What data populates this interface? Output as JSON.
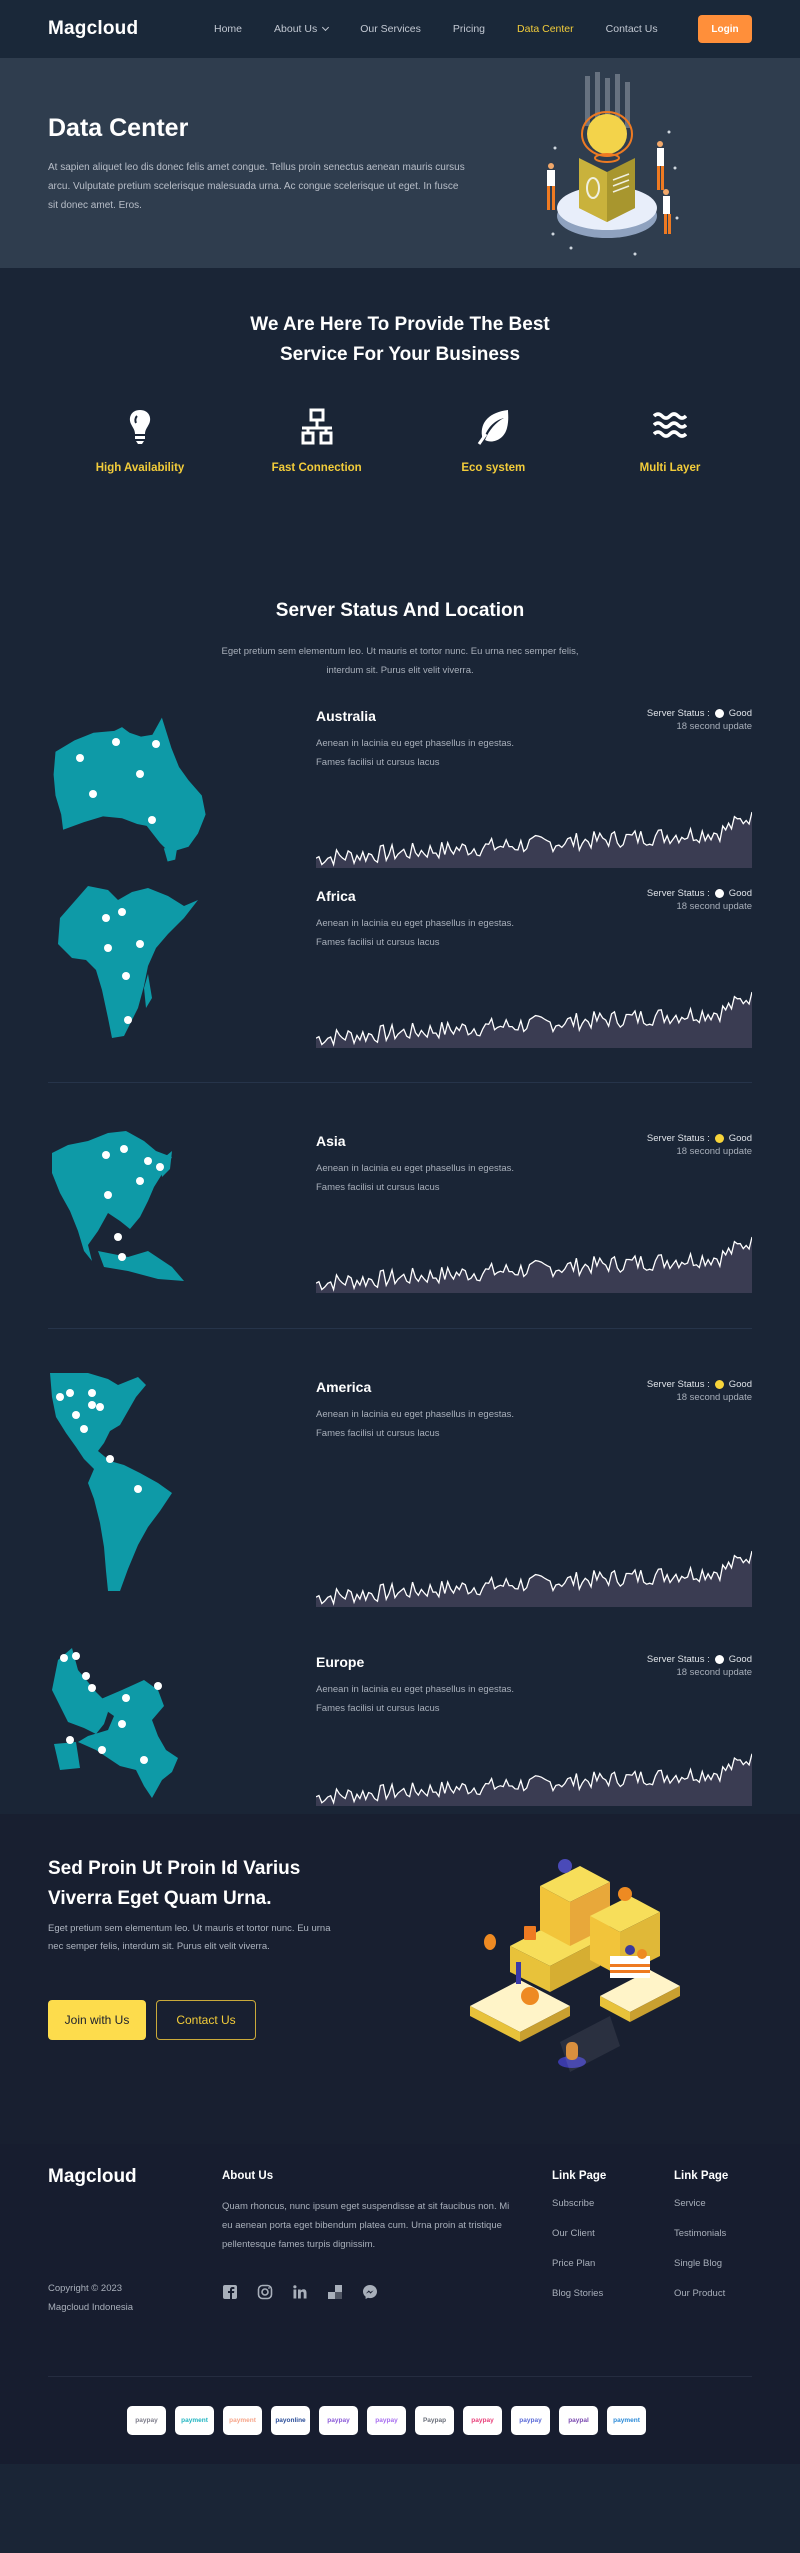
{
  "header": {
    "logo": "Magcloud",
    "nav": [
      {
        "label": "Home",
        "active": false
      },
      {
        "label": "About Us",
        "active": false,
        "dropdown": true
      },
      {
        "label": "Our Services",
        "active": false
      },
      {
        "label": "Pricing",
        "active": false
      },
      {
        "label": "Data Center",
        "active": true
      },
      {
        "label": "Contact Us",
        "active": false
      }
    ],
    "login_label": "Login"
  },
  "hero": {
    "title": "Data Center",
    "text": "At sapien aliquet leo dis donec felis amet congue. Tellus proin senectus aenean mauris cursus arcu. Vulputate pretium scelerisque malesuada urna. Ac congue scelerisque ut eget. In fusce sit donec amet. Eros."
  },
  "services": {
    "title_line1": "We Are Here To Provide The Best",
    "title_line2": "Service For Your Business",
    "features": [
      {
        "icon": "lightbulb-icon",
        "label": "High Availability"
      },
      {
        "icon": "network-icon",
        "label": "Fast Connection"
      },
      {
        "icon": "leaf-icon",
        "label": "Eco system"
      },
      {
        "icon": "waves-icon",
        "label": "Multi Layer"
      }
    ]
  },
  "status": {
    "title": "Server Status And Location",
    "text": "Eget pretium sem elementum leo. Ut mauris et tortor nunc. Eu urna nec semper felis, interdum sit. Purus elit velit viverra.",
    "status_label": "Server Status :",
    "regions": [
      {
        "name": "Australia",
        "desc": "Aenean in lacinia eu eget phasellus in egestas. Fames facilisi ut cursus lacus",
        "status": "Good",
        "dot_color": "#ffffff",
        "update": "18 second update"
      },
      {
        "name": "Africa",
        "desc": "Aenean in lacinia eu eget phasellus in egestas. Fames facilisi ut cursus lacus",
        "status": "Good",
        "dot_color": "#ffffff",
        "update": "18 second update"
      },
      {
        "name": "Asia",
        "desc": "Aenean in lacinia eu eget phasellus in egestas. Fames facilisi ut cursus lacus",
        "status": "Good",
        "dot_color": "#f7d43a",
        "update": "18 second update"
      },
      {
        "name": "America",
        "desc": "Aenean in lacinia eu eget phasellus in egestas. Fames facilisi ut cursus lacus",
        "status": "Good",
        "dot_color": "#f7d43a",
        "update": "18 second update"
      },
      {
        "name": "Europe",
        "desc": "Aenean in lacinia eu eget phasellus in egestas. Fames facilisi ut cursus lacus",
        "status": "Good",
        "dot_color": "#ffffff",
        "update": "18 second update"
      }
    ]
  },
  "cta": {
    "title": "Sed Proin Ut Proin Id Varius Viverra Eget Quam Urna.",
    "text": "Eget pretium sem elementum leo. Ut mauris et tortor nunc. Eu urna nec semper felis, interdum sit. Purus elit velit viverra.",
    "join_label": "Join with Us",
    "contact_label": "Contact Us"
  },
  "footer": {
    "logo": "Magcloud",
    "copyright_line1": "Copyright © 2023",
    "copyright_line2": "Magcloud Indonesia",
    "about_title": "About Us",
    "about_text": "Quam rhoncus, nunc ipsum eget suspendisse at sit faucibus non. Mi eu aenean porta eget bibendum platea cum. Urna proin at tristique pellentesque fames turpis dignissim.",
    "socials": [
      "facebook-icon",
      "instagram-icon",
      "linkedin-icon",
      "delicious-icon",
      "messenger-icon"
    ],
    "col1": {
      "title": "Link Page",
      "links": [
        "Subscribe",
        "Our Client",
        "Price Plan",
        "Blog Stories"
      ]
    },
    "col2": {
      "title": "Link Page",
      "links": [
        "Service",
        "Testimonials",
        "Single Blog",
        "Our Product"
      ]
    },
    "payments": [
      {
        "label": "paypay",
        "color": "#7c7c8a"
      },
      {
        "label": "payment",
        "color": "#22b5c2"
      },
      {
        "label": "payment",
        "color": "#f6a58a"
      },
      {
        "label": "payonline",
        "color": "#2a4e9a"
      },
      {
        "label": "paypay",
        "color": "#8a5ad8"
      },
      {
        "label": "paypay",
        "color": "#a66cf0"
      },
      {
        "label": "Paypap",
        "color": "#6a6f7a"
      },
      {
        "label": "paypay",
        "color": "#e8407a"
      },
      {
        "label": "paypay",
        "color": "#5a6ad8"
      },
      {
        "label": "paypal",
        "color": "#7a4ab0"
      },
      {
        "label": "payment",
        "color": "#2a8ad8"
      }
    ]
  }
}
